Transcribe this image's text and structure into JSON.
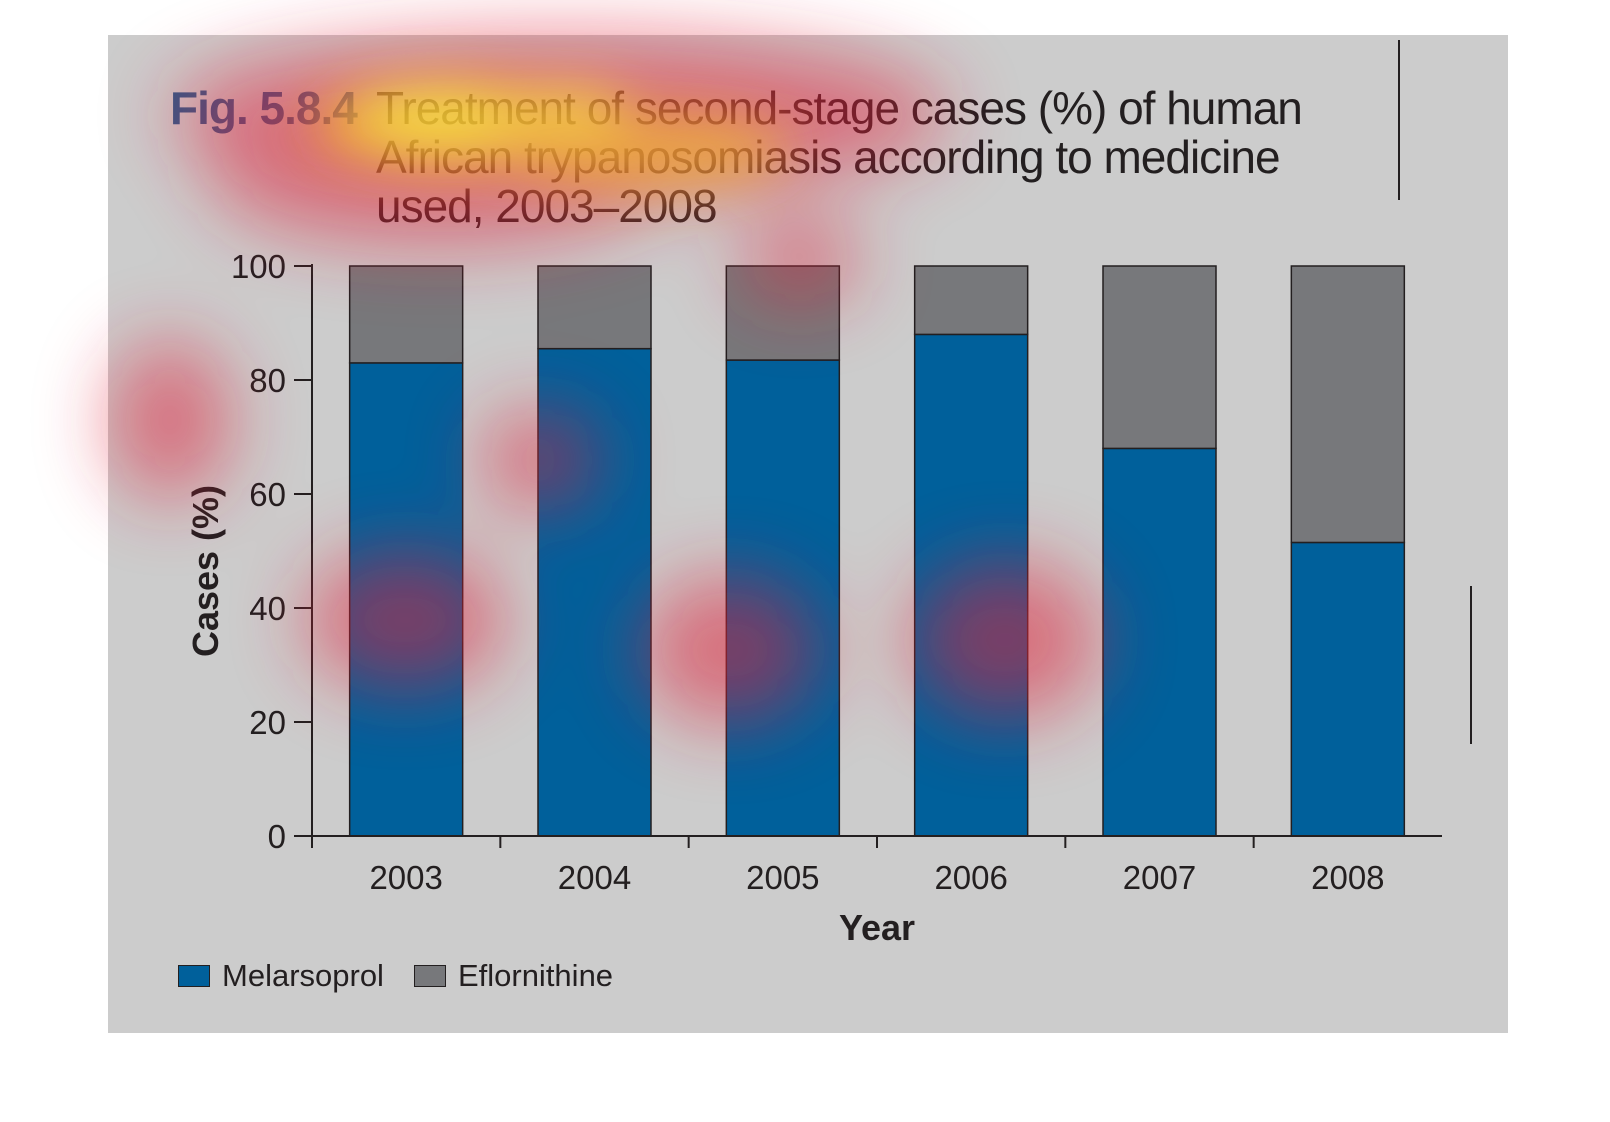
{
  "figure": {
    "label": "Fig. 5.8.4",
    "title": "Treatment of second-stage cases (%) of human African trypanosomiasis according to medicine used, 2003–2008"
  },
  "chart_data": {
    "type": "bar",
    "stacked": true,
    "categories": [
      "2003",
      "2004",
      "2005",
      "2006",
      "2007",
      "2008"
    ],
    "series": [
      {
        "name": "Melarsoprol",
        "color": "#00609b",
        "values": [
          83,
          85.5,
          83.5,
          88,
          68,
          51.5
        ]
      },
      {
        "name": "Eflornithine",
        "color": "#77787b",
        "values": [
          17,
          14.5,
          16.5,
          12,
          32,
          48.5
        ]
      }
    ],
    "xlabel": "Year",
    "ylabel": "Cases (%)",
    "ylim": [
      0,
      100
    ],
    "yticks": [
      0,
      20,
      40,
      60,
      80,
      100
    ],
    "grid": false,
    "legend_position": "bottom-left"
  },
  "colors": {
    "panel_background": "#cccccc",
    "label_color": "#2a5a8a",
    "ink": "#231f20"
  }
}
